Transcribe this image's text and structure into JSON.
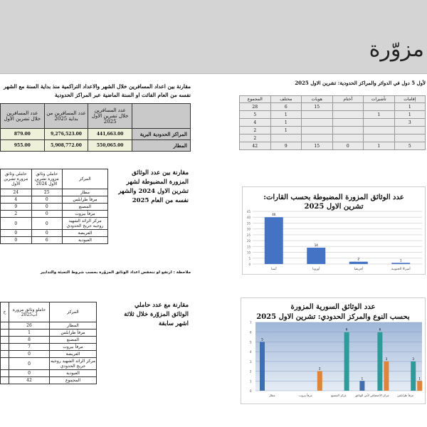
{
  "header": {
    "title": "مزوّرة"
  },
  "top_right": {
    "title": "لأول 5 دول في الدوائر والمراكز الحدودية: تشرين الاول 2025",
    "columns": [
      "إقامات",
      "تأشيرات",
      "أختام",
      "هويات",
      "مختلف",
      "المجموع"
    ],
    "rows": [
      [
        "1",
        "",
        "",
        "15",
        "6",
        "28"
      ],
      [
        "1",
        "1",
        "",
        "",
        "1",
        "5"
      ],
      [
        "3",
        "",
        "",
        "",
        "1",
        "4"
      ],
      [
        "",
        "",
        "",
        "",
        "1",
        "2"
      ],
      [
        "",
        "",
        "",
        "",
        "",
        "2"
      ],
      [
        "5",
        "1",
        "0",
        "15",
        "9",
        "42"
      ]
    ]
  },
  "top_left": {
    "title": "مقارنة بين اعداد المسافرين خلال الشهر والاعداد التراكمية منذ بداية السنة مع الشهر نفسه من العام الفائت او السنة الماضية عبر المراكز الحدودية",
    "columns": [
      "",
      "عدد المسافرين خلال تشرين الأول 2025",
      "عدد المسافرين من بداية 2025",
      "عدد المسافرين خلال تشرين الأول"
    ],
    "rows": [
      [
        "المراكز الحدودية البرية",
        "441,663.00",
        "9,276,523.00",
        "879.00"
      ],
      [
        "المطار",
        "550,065.00",
        "5,908,772.00",
        "955.00"
      ]
    ]
  },
  "mid_left": {
    "title": "مقارنة بين عدد الوثائق المزورة المضبوطة لشهر تشرين الاول 2024 والشهر نفسه من العام 2025",
    "columns": [
      "المركز",
      "حاملي وثائق مزورة تشرين الأول 2024",
      "حاملي وثائق مزورة تشرين الأول"
    ],
    "rows": [
      [
        "مطار",
        "25",
        "24"
      ],
      [
        "مرفأ طرابلس",
        "0",
        "4"
      ],
      [
        "المصنع",
        "0",
        "9"
      ],
      [
        "مرفأ بيروت",
        "0",
        "2"
      ],
      [
        "مركز الرائد الشهيد روجيه جريج الحدودي",
        "0",
        "0"
      ],
      [
        "العريضة",
        "0",
        "0"
      ],
      [
        "العبودية",
        "6",
        "0"
      ]
    ],
    "note": "ملاحظة : ارتفع او تنخفض اعداد الوثائق المزوّرة بحسب شروط التعبئة والتدابير"
  },
  "bottom_left": {
    "title": "مقارنة مع عدد حاملي الوثائق المزوّرة خلال ثلاثة اشهر سابقة",
    "columns": [
      "المركز",
      "حاملو وثائق مزورة آب2025",
      "ح"
    ],
    "rows": [
      [
        "المطار",
        "26",
        ""
      ],
      [
        "مرفأ طرابلس",
        "1",
        ""
      ],
      [
        "المصنع",
        "8",
        ""
      ],
      [
        "مرفأ بيروت",
        "7",
        ""
      ],
      [
        "العريضة",
        "0",
        ""
      ],
      [
        "مركز الرائد الشهيد روجيه جريج الحدودي",
        "0",
        ""
      ],
      [
        "العبودية",
        "0",
        ""
      ],
      [
        "المجموع",
        "42",
        ""
      ]
    ]
  },
  "chart_data": [
    {
      "type": "bar",
      "title": "عدد الوثائق المزورة المضبوطة بحسب القارات: تشرين الاول 2025",
      "title_lines": [
        "عدد الوثائق المزورة المضبوطة بحسب القارات:",
        "تشرين الاول 2025"
      ],
      "categories": [
        "آسيا",
        "أوروبا",
        "أفريقيا",
        "أميركا الجنوبية"
      ],
      "values": [
        40,
        14,
        2,
        1
      ],
      "ylim": [
        0,
        45
      ],
      "yticks": [
        0,
        5,
        10,
        15,
        20,
        25,
        30,
        35,
        40,
        45
      ],
      "grid": true,
      "color": "#4472c4"
    },
    {
      "type": "bar",
      "title_lines": [
        "عدد الوثائق السورية المزورة",
        "بحسب النوع والمركز الحدودي: تشرين الاول 2025"
      ],
      "categories": [
        "مطار",
        "مرفأ بيروت",
        "مركز المصنع",
        "مركز الاختصاص لأمن الوثائق",
        "مرفأ طرابلس"
      ],
      "series": [
        {
          "values": [
            5,
            0,
            0,
            1,
            0
          ],
          "color": "#3e6fb0"
        },
        {
          "values": [
            0,
            0,
            6,
            6,
            3
          ],
          "color": "#2e9b9b"
        },
        {
          "values": [
            0,
            2,
            0,
            3,
            1
          ],
          "color": "#e0843a"
        }
      ],
      "ylim": [
        0,
        7
      ],
      "yticks": [
        0,
        1,
        2,
        3,
        4,
        5,
        6,
        7
      ],
      "grid": true
    }
  ]
}
